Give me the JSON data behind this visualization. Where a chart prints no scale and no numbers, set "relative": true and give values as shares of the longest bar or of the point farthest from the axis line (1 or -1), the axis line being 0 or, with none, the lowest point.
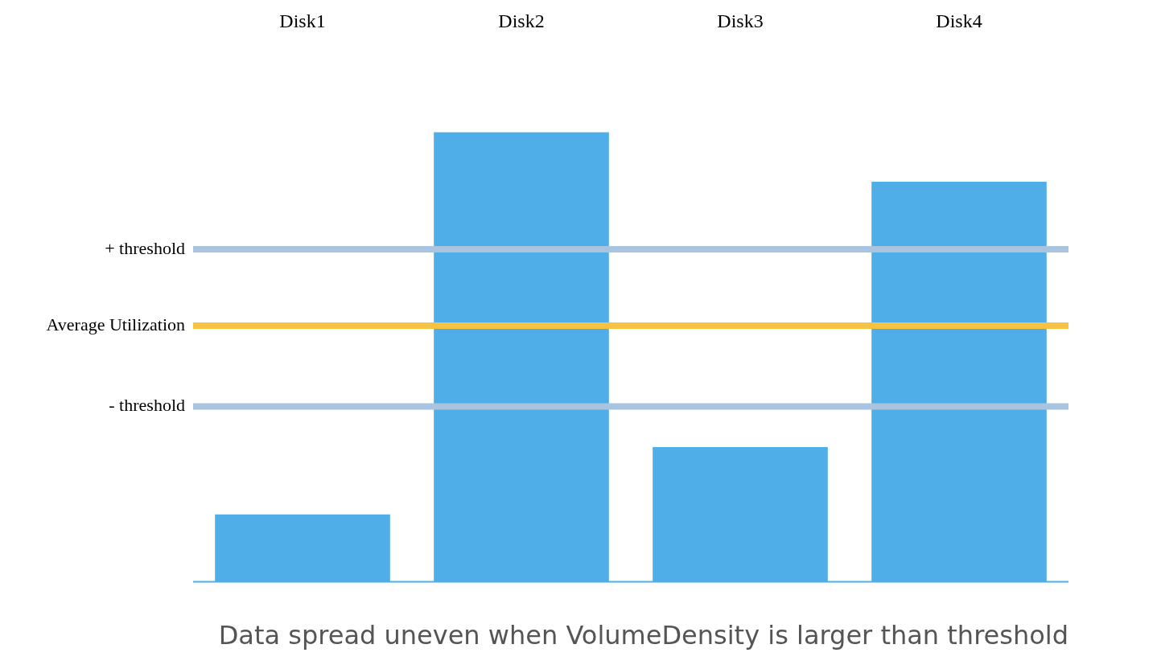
{
  "chart_data": {
    "type": "bar",
    "title": "Data spread uneven when VolumeDensity is larger than threshold",
    "categories": [
      "Disk1",
      "Disk2",
      "Disk3",
      "Disk4"
    ],
    "relative": true,
    "series": [
      {
        "color": "#4fade8",
        "values": [
          0.15,
          1,
          0.3,
          0.89
        ]
      }
    ],
    "ref_lines": [
      {
        "axis": "y",
        "value": 0.74,
        "label": "+ threshold",
        "color": "#a8c4e0"
      },
      {
        "axis": "y",
        "value": 0.57,
        "label": "Average Utilization",
        "color": "#f5c242"
      },
      {
        "axis": "y",
        "value": 0.39,
        "label": "- threshold",
        "color": "#a8c4e0"
      }
    ],
    "grid": false,
    "legend": false
  }
}
